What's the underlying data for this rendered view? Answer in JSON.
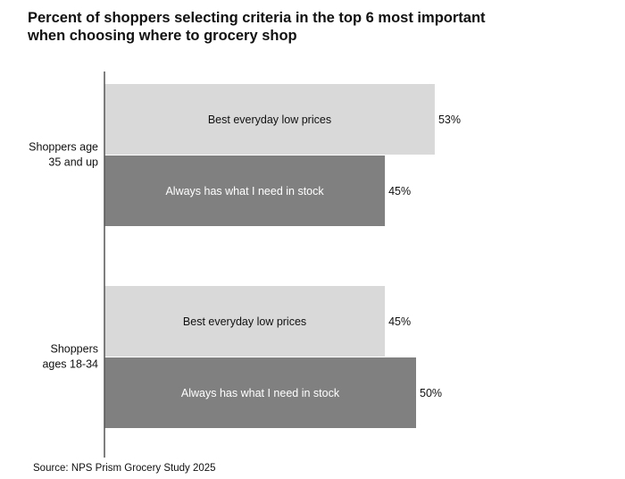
{
  "chart_data": {
    "type": "bar",
    "orientation": "horizontal",
    "title": "Percent of shoppers selecting criteria in the top 6 most important when choosing where to grocery shop",
    "xlabel": "",
    "ylabel": "",
    "xlim": [
      0,
      100
    ],
    "grid": false,
    "legend": "none",
    "groups": [
      {
        "label": "Shoppers age 35 and up",
        "label_lines": [
          "Shoppers age",
          "35 and up"
        ],
        "bars": [
          {
            "criterion": "Best everyday low prices",
            "value": 53,
            "value_label": "53%"
          },
          {
            "criterion": "Always has what I need in stock",
            "value": 45,
            "value_label": "45%"
          }
        ]
      },
      {
        "label": "Shoppers ages 18-34",
        "label_lines": [
          "Shoppers",
          "ages 18-34"
        ],
        "bars": [
          {
            "criterion": "Best everyday low prices",
            "value": 45,
            "value_label": "45%"
          },
          {
            "criterion": "Always has what I need in stock",
            "value": 50,
            "value_label": "50%"
          }
        ]
      }
    ],
    "series_colors": {
      "Best everyday low prices": "#d9d9d9",
      "Always has what I need in stock": "#808080"
    },
    "bar_text_colors": {
      "Best everyday low prices": "#111111",
      "Always has what I need in stock": "#ffffff"
    },
    "source": "Source: NPS Prism Grocery Study 2025"
  }
}
